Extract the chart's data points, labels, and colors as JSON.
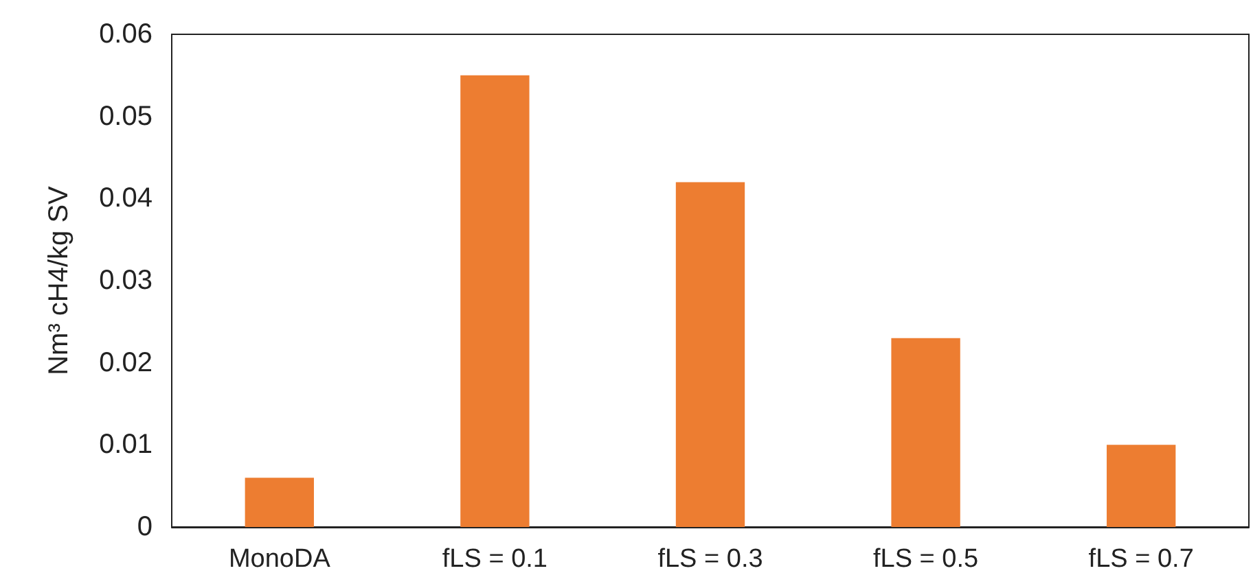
{
  "chart_data": {
    "type": "bar",
    "ylabel": "Nm³ cH4/kg SV",
    "categories": [
      "MonoDA",
      "fLS = 0.1",
      "fLS = 0.3",
      "fLS = 0.5",
      "fLS = 0.7"
    ],
    "values": [
      0.006,
      0.055,
      0.042,
      0.023,
      0.01
    ],
    "color": "#ed7d31",
    "ylim": [
      0,
      0.06
    ],
    "yticks": [
      0,
      0.01,
      0.02,
      0.03,
      0.04,
      0.05,
      0.06
    ],
    "grid": false
  }
}
